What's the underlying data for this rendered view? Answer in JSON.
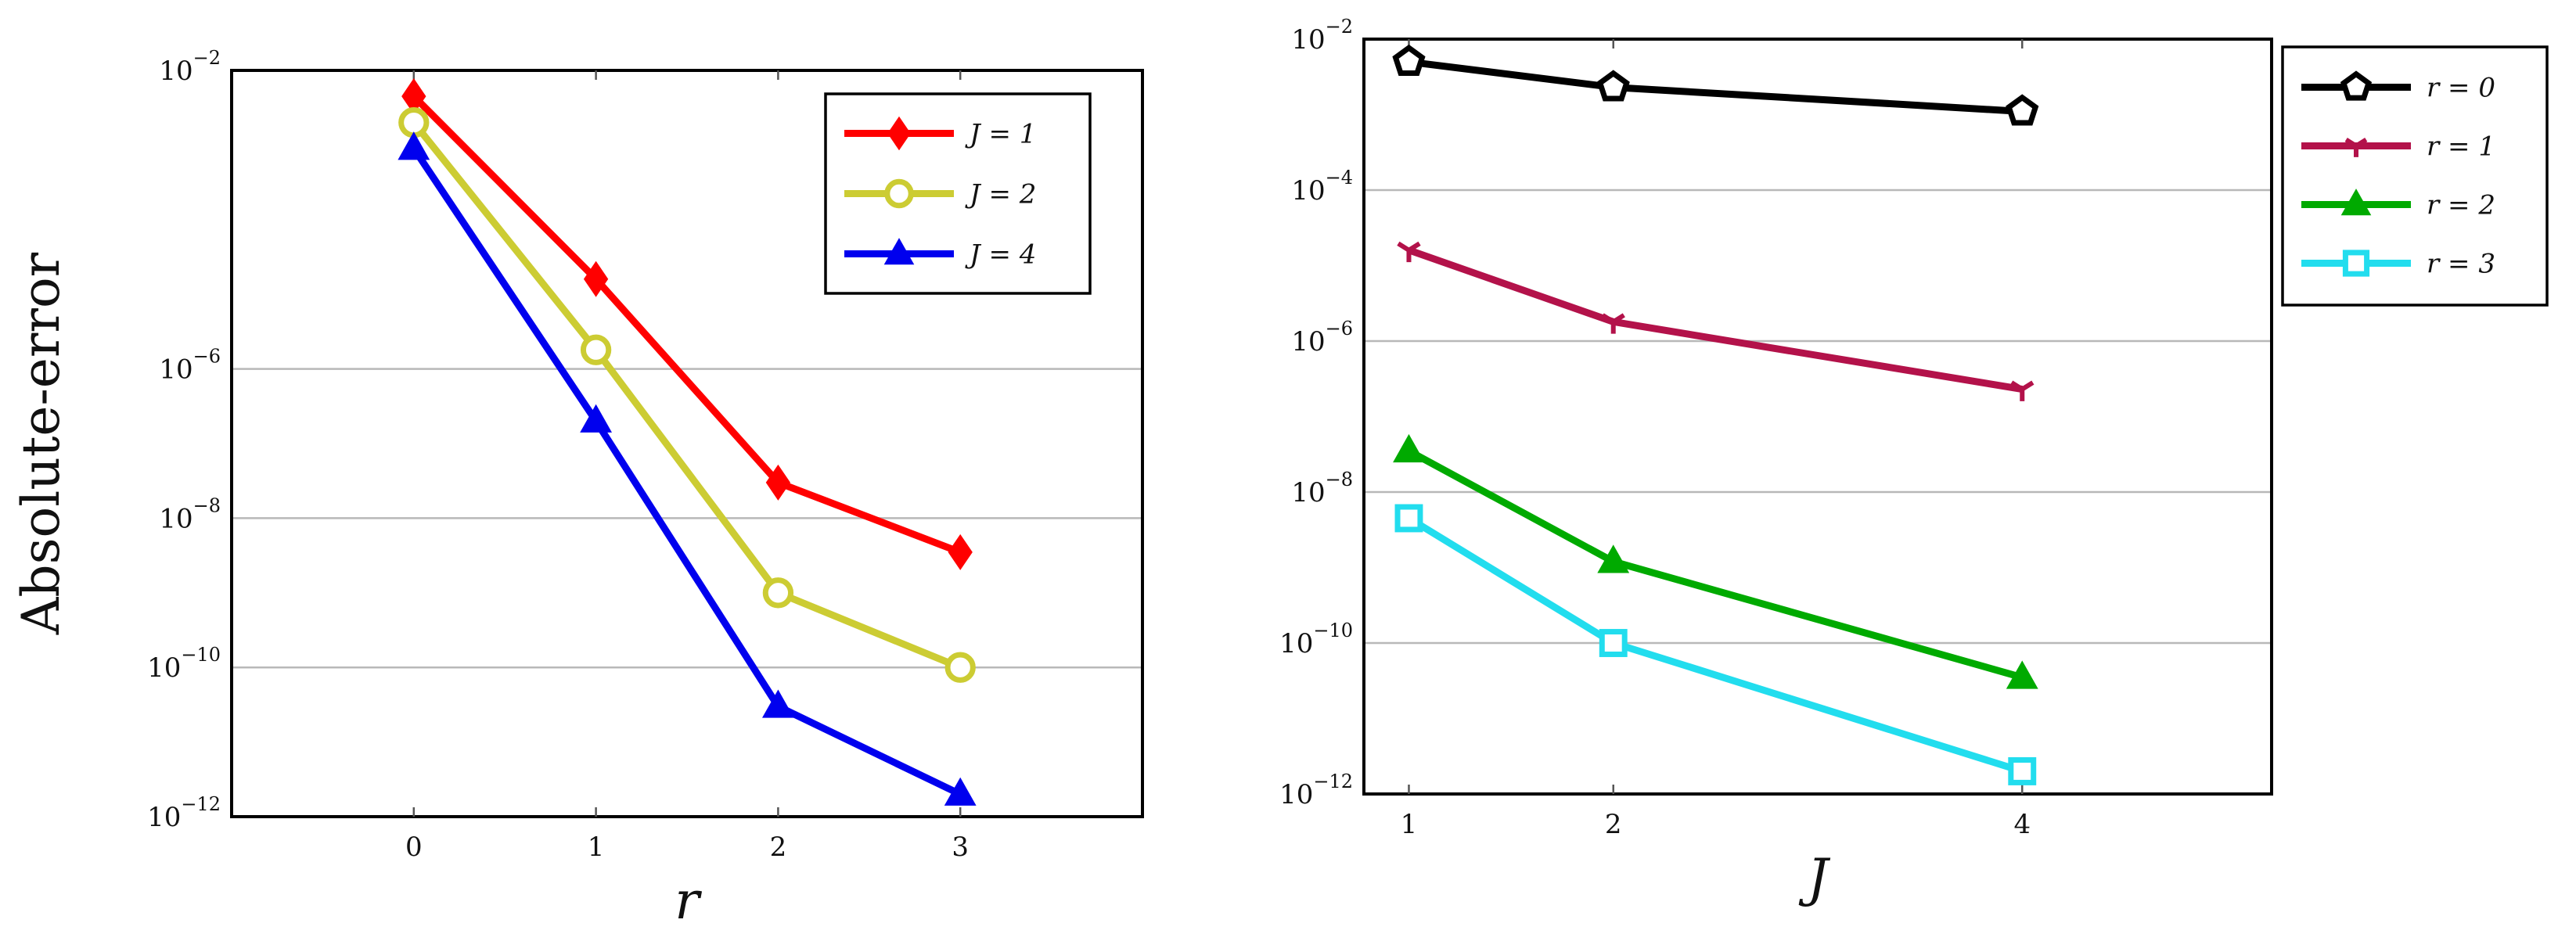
{
  "chart_data": [
    {
      "type": "line",
      "x": [
        0,
        1,
        2,
        3
      ],
      "x_tick_labels": [
        "0",
        "1",
        "2",
        "3"
      ],
      "xlim": [
        -1,
        4
      ],
      "ylim": [
        1e-12,
        0.01
      ],
      "yscale": "log",
      "y_ticks": [
        {
          "base": "10",
          "exp": "−2",
          "value": 0.01
        },
        {
          "base": "10",
          "exp": "−6",
          "value": 1e-06
        },
        {
          "base": "10",
          "exp": "−8",
          "value": 1e-08
        },
        {
          "base": "10",
          "exp": "−10",
          "value": 1e-10
        },
        {
          "base": "10",
          "exp": "−12",
          "value": 1e-12
        }
      ],
      "xlabel": "r",
      "ylabel": "Absolute-error",
      "grid": "horizontal",
      "legend_position": "top-right",
      "series": [
        {
          "name": "J = 1",
          "color": "#ff0000",
          "marker": "diamond",
          "values": [
            0.0045,
            1.6e-05,
            3e-08,
            3.5e-09
          ]
        },
        {
          "name": "J = 2",
          "color": "#cccc33",
          "marker": "circle",
          "values": [
            0.002,
            1.8e-06,
            1e-09,
            1e-10
          ]
        },
        {
          "name": "J = 4",
          "color": "#0000ee",
          "marker": "triangle",
          "values": [
            0.0009,
            2e-07,
            3e-11,
            2e-12
          ]
        }
      ]
    },
    {
      "type": "line",
      "x": [
        1,
        2,
        4
      ],
      "x_tick_labels": [
        "1",
        "2",
        "4"
      ],
      "xlim": [
        0.78,
        5.22
      ],
      "ylim": [
        1e-12,
        0.01
      ],
      "yscale": "log",
      "y_ticks": [
        {
          "base": "10",
          "exp": "−2",
          "value": 0.01
        },
        {
          "base": "10",
          "exp": "−4",
          "value": 0.0001
        },
        {
          "base": "10",
          "exp": "−6",
          "value": 1e-06
        },
        {
          "base": "10",
          "exp": "−8",
          "value": 1e-08
        },
        {
          "base": "10",
          "exp": "−10",
          "value": 1e-10
        },
        {
          "base": "10",
          "exp": "−12",
          "value": 1e-12
        }
      ],
      "xlabel": "J",
      "ylabel": "",
      "grid": "horizontal",
      "legend_position": "outside-right",
      "series": [
        {
          "name": "r = 0",
          "color": "#000000",
          "marker": "pentagon",
          "values": [
            0.005,
            0.0023,
            0.0011
          ]
        },
        {
          "name": "r = 1",
          "color": "#b3124a",
          "marker": "tri-down",
          "values": [
            1.6e-05,
            1.8e-06,
            2.3e-07
          ]
        },
        {
          "name": "r = 2",
          "color": "#00aa00",
          "marker": "triangle",
          "values": [
            3.5e-08,
            1.2e-09,
            3.5e-11
          ]
        },
        {
          "name": "r = 3",
          "color": "#22ddee",
          "marker": "square",
          "values": [
            4.5e-09,
            1e-10,
            2e-12
          ]
        }
      ]
    }
  ]
}
